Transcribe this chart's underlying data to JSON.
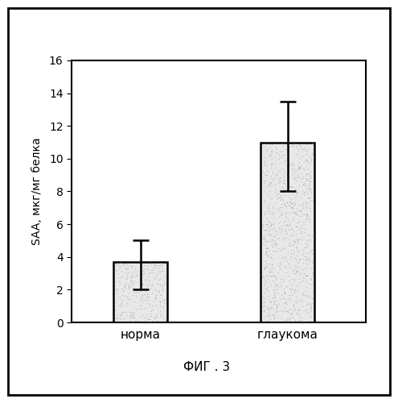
{
  "categories": [
    "норма",
    "глаукома"
  ],
  "values": [
    3.7,
    11.0
  ],
  "error_upper": [
    1.3,
    2.5
  ],
  "error_lower": [
    1.7,
    3.0
  ],
  "ylabel": "SAA, мкг/мг белка",
  "ylim": [
    0,
    16
  ],
  "yticks": [
    0,
    2,
    4,
    6,
    8,
    10,
    12,
    14,
    16
  ],
  "caption": "ФИГ . 3",
  "bar_color": "#e8e8e8",
  "bar_edge_color": "#000000",
  "bar_width": 0.55,
  "bar_positions": [
    1,
    2.5
  ],
  "figsize": [
    4.95,
    5.0
  ],
  "dpi": 100,
  "background_color": "#ffffff",
  "ylabel_fontsize": 10,
  "tick_fontsize": 10,
  "label_fontsize": 11,
  "caption_fontsize": 11,
  "outer_box_color": "#000000",
  "xlim": [
    0.3,
    3.3
  ]
}
